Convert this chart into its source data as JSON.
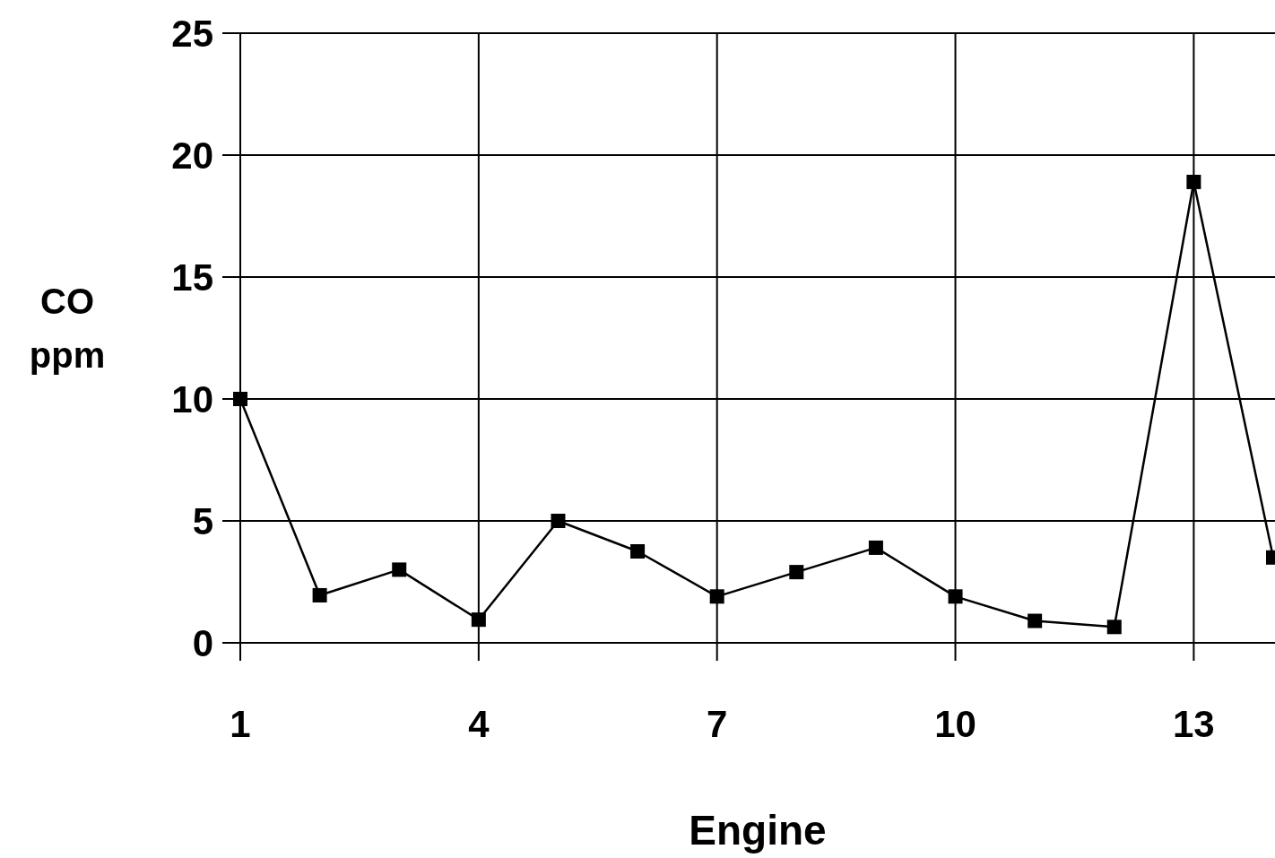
{
  "chart_data": {
    "type": "line",
    "xlabel": "Engine",
    "ylabel": "CO ppm",
    "x": [
      1,
      2,
      3,
      4,
      5,
      6,
      7,
      8,
      9,
      10,
      11,
      12,
      13,
      14
    ],
    "series": [
      {
        "color": "#000000",
        "values": [
          10,
          1.95,
          3,
          0.95,
          5,
          3.75,
          1.9,
          2.9,
          3.9,
          1.9,
          0.9,
          0.65,
          18.9,
          3.5
        ]
      }
    ],
    "xlim": [
      1,
      14
    ],
    "xticks": [
      1,
      4,
      7,
      10,
      13
    ],
    "ylim": [
      0,
      25
    ],
    "yticks": [
      0,
      5,
      10,
      15,
      20,
      25
    ],
    "grid": true,
    "marker": "square",
    "line_style": "solid"
  }
}
